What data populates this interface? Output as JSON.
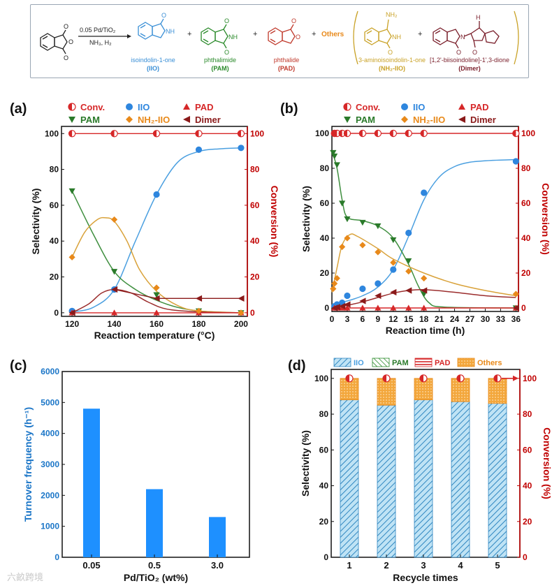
{
  "scheme": {
    "reagent_top": "0.05 Pd/TiO₂",
    "reagent_bottom": "NH₃, H₂",
    "plus": "+",
    "others": "Others",
    "products": [
      {
        "name": "isoindolin-1-one",
        "abbr": "(IIO)",
        "color": "#3a8fd6"
      },
      {
        "name": "phthalimide",
        "abbr": "(PAM)",
        "color": "#2a8a2a"
      },
      {
        "name": "phthalide",
        "abbr": "(PAD)",
        "color": "#c0392b"
      },
      {
        "name": "3-aminoisoindolin-1-one",
        "abbr": "(NH₂-IIO)",
        "color": "#c9a227"
      },
      {
        "name": "[1,2'-biisoindoline]-1',3-dione",
        "abbr": "(Dimer)",
        "color": "#7a1f2b"
      }
    ],
    "atoms": {
      "o": "O",
      "nh": "NH",
      "nh_label": "H",
      "n": "N",
      "nh2": "NH₂"
    }
  },
  "colors": {
    "conv": "#d62728",
    "iio": "#2e86de",
    "pam": "#2a7a2a",
    "pad": "#d62728",
    "nh2": "#e8891a",
    "dimer": "#8b1a1a",
    "axis_right": "#c00000",
    "tof_bar": "#1e90ff",
    "tof_axis": "#1a75c7",
    "iio_curve": "#4a9fe0",
    "pam_curve": "#3f8f3f",
    "nh2_curve": "#d9a23a",
    "dimer_curve": "#9b2d2d"
  },
  "chart_data": [
    {
      "panel": "(a)",
      "type": "line",
      "xlabel": "Reaction temperature (°C)",
      "ylabel": "Selectivity (%)",
      "y2label": "Conversion (%)",
      "xlim": [
        115,
        203
      ],
      "ylim": [
        -2,
        104
      ],
      "y2lim": [
        -2,
        104
      ],
      "xticks": [
        120,
        140,
        160,
        180,
        200
      ],
      "yticks": [
        0,
        20,
        40,
        60,
        80,
        100
      ],
      "legend": [
        "Conv.",
        "IIO",
        "PAD",
        "PAM",
        "NH₂-IIO",
        "Dimer"
      ],
      "series": [
        {
          "name": "Conv.",
          "x": [
            120,
            140,
            160,
            180,
            200
          ],
          "y": [
            100,
            100,
            100,
            100,
            100
          ]
        },
        {
          "name": "IIO",
          "x": [
            120,
            140,
            160,
            180,
            200
          ],
          "y": [
            1,
            13,
            66,
            91,
            92
          ]
        },
        {
          "name": "PAM",
          "x": [
            120,
            140,
            160,
            180,
            200
          ],
          "y": [
            68,
            23,
            10,
            1,
            0
          ]
        },
        {
          "name": "PAD",
          "x": [
            120,
            140,
            160,
            180,
            200
          ],
          "y": [
            0,
            0,
            0,
            0,
            0
          ]
        },
        {
          "name": "NH₂-IIO",
          "x": [
            120,
            140,
            160,
            180,
            200
          ],
          "y": [
            31,
            52,
            14,
            1,
            0
          ]
        },
        {
          "name": "Dimer",
          "x": [
            120,
            140,
            160,
            180,
            200
          ],
          "y": [
            0,
            13,
            8,
            8,
            8
          ]
        }
      ],
      "curves": {
        "IIO": [
          [
            120,
            0.5
          ],
          [
            130,
            3
          ],
          [
            140,
            13
          ],
          [
            150,
            40
          ],
          [
            160,
            66
          ],
          [
            170,
            84
          ],
          [
            180,
            90
          ],
          [
            190,
            91.5
          ],
          [
            200,
            92
          ]
        ],
        "PAM": [
          [
            120,
            68
          ],
          [
            130,
            44
          ],
          [
            140,
            23
          ],
          [
            150,
            13
          ],
          [
            160,
            7
          ],
          [
            170,
            3
          ],
          [
            180,
            1
          ],
          [
            190,
            0.3
          ],
          [
            200,
            0
          ]
        ],
        "NH₂-IIO": [
          [
            120,
            31
          ],
          [
            126,
            45
          ],
          [
            132,
            52
          ],
          [
            136,
            53
          ],
          [
            140,
            51
          ],
          [
            146,
            40
          ],
          [
            152,
            24
          ],
          [
            160,
            12
          ],
          [
            170,
            4
          ],
          [
            180,
            1
          ],
          [
            200,
            0
          ]
        ],
        "Dimer": [
          [
            120,
            0
          ],
          [
            128,
            5
          ],
          [
            134,
            11
          ],
          [
            140,
            13
          ],
          [
            148,
            11
          ],
          [
            156,
            6
          ],
          [
            165,
            2
          ],
          [
            180,
            0.5
          ],
          [
            200,
            0
          ]
        ]
      }
    },
    {
      "panel": "(b)",
      "type": "line",
      "xlabel": "Reaction time (h)",
      "ylabel": "Selectivity (%)",
      "y2label": "Conversion (%)",
      "xlim": [
        0,
        36.5
      ],
      "ylim": [
        -2,
        104
      ],
      "y2lim": [
        -2,
        104
      ],
      "xticks": [
        0,
        3,
        6,
        9,
        12,
        15,
        18,
        21,
        24,
        27,
        30,
        33,
        36
      ],
      "yticks": [
        0,
        20,
        40,
        60,
        80,
        100
      ],
      "legend": [
        "Conv.",
        "IIO",
        "PAD",
        "PAM",
        "NH₂-IIO",
        "Dimer"
      ],
      "series": [
        {
          "name": "Conv.",
          "x": [
            0.5,
            1,
            2,
            3,
            6,
            9,
            12,
            15,
            18,
            36
          ],
          "y": [
            100,
            100,
            100,
            100,
            100,
            100,
            100,
            100,
            100,
            100
          ]
        },
        {
          "name": "IIO",
          "x": [
            0.5,
            1,
            2,
            3,
            6,
            9,
            12,
            15,
            18,
            36
          ],
          "y": [
            1,
            2,
            3,
            7,
            11,
            14,
            22,
            43,
            66,
            84
          ]
        },
        {
          "name": "PAM",
          "x": [
            0.25,
            0.5,
            1,
            2,
            3,
            6,
            9,
            12,
            15,
            18,
            36
          ],
          "y": [
            89,
            87,
            82,
            60,
            51,
            49,
            47,
            39,
            27,
            8,
            0
          ]
        },
        {
          "name": "PAD",
          "x": [
            0.5,
            1,
            2,
            3,
            6,
            9,
            12,
            15,
            18,
            36
          ],
          "y": [
            0,
            0,
            0,
            0,
            0,
            0,
            0,
            0,
            0,
            0
          ]
        },
        {
          "name": "NH₂-IIO",
          "x": [
            0.25,
            0.5,
            1,
            2,
            3,
            6,
            9,
            12,
            15,
            18,
            36
          ],
          "y": [
            11,
            14,
            17,
            35,
            40,
            36,
            32,
            26,
            21,
            17,
            8
          ]
        },
        {
          "name": "Dimer",
          "x": [
            0.5,
            1,
            2,
            3,
            6,
            9,
            12,
            15,
            18,
            36
          ],
          "y": [
            0,
            0.5,
            1,
            2,
            4,
            7,
            9,
            10,
            10,
            0
          ]
        }
      ],
      "curves": {
        "IIO": [
          [
            0,
            2
          ],
          [
            3,
            4
          ],
          [
            6,
            7
          ],
          [
            9,
            12
          ],
          [
            12,
            22
          ],
          [
            15,
            41
          ],
          [
            18,
            62
          ],
          [
            21,
            75
          ],
          [
            24,
            81
          ],
          [
            27,
            83.5
          ],
          [
            30,
            84.3
          ],
          [
            33,
            84.7
          ],
          [
            36,
            85
          ]
        ],
        "PAM": [
          [
            0,
            90
          ],
          [
            1,
            80
          ],
          [
            2,
            62
          ],
          [
            3,
            52
          ],
          [
            6,
            50
          ],
          [
            9,
            47
          ],
          [
            12,
            40
          ],
          [
            15,
            25
          ],
          [
            17,
            12
          ],
          [
            19,
            3
          ],
          [
            22,
            0.5
          ],
          [
            36,
            0
          ]
        ],
        "NH₂-IIO": [
          [
            0,
            9
          ],
          [
            1,
            23
          ],
          [
            2,
            36
          ],
          [
            3.5,
            42
          ],
          [
            5,
            41
          ],
          [
            9,
            34
          ],
          [
            12,
            28
          ],
          [
            18,
            20
          ],
          [
            24,
            14
          ],
          [
            30,
            10
          ],
          [
            36,
            7
          ]
        ],
        "Dimer": [
          [
            0,
            0
          ],
          [
            3,
            1.5
          ],
          [
            6,
            3.5
          ],
          [
            9,
            6
          ],
          [
            12,
            8.5
          ],
          [
            15,
            10
          ],
          [
            18,
            10.5
          ],
          [
            24,
            9
          ],
          [
            30,
            7
          ],
          [
            36,
            6
          ]
        ]
      }
    },
    {
      "panel": "(c)",
      "type": "bar",
      "xlabel": "Pd/TiO₂ (wt%)",
      "ylabel": "Turnover frequency (h⁻¹)",
      "categories": [
        "0.05",
        "0.5",
        "3.0"
      ],
      "values": [
        4800,
        2200,
        1300
      ],
      "ylim": [
        0,
        6000
      ],
      "yticks": [
        0,
        1000,
        2000,
        3000,
        4000,
        5000,
        6000
      ]
    },
    {
      "panel": "(d)",
      "type": "bar",
      "xlabel": "Recycle times",
      "ylabel": "Selectivity (%)",
      "y2label": "Conversion (%)",
      "categories": [
        "1",
        "2",
        "3",
        "4",
        "5"
      ],
      "legend": [
        "IIO",
        "PAM",
        "PAD",
        "Others"
      ],
      "series": [
        {
          "name": "IIO",
          "values": [
            88,
            85,
            88,
            87,
            86
          ]
        },
        {
          "name": "PAM",
          "values": [
            0,
            0,
            0,
            0,
            0
          ]
        },
        {
          "name": "PAD",
          "values": [
            0,
            0,
            0,
            0,
            0
          ]
        },
        {
          "name": "Others",
          "values": [
            12,
            15,
            12,
            13,
            14
          ]
        }
      ],
      "conversion": [
        100,
        100,
        100,
        100,
        100
      ],
      "ylim": [
        0,
        105
      ],
      "yticks": [
        0,
        20,
        40,
        60,
        80,
        100
      ]
    }
  ],
  "watermark": "六畝跨境"
}
